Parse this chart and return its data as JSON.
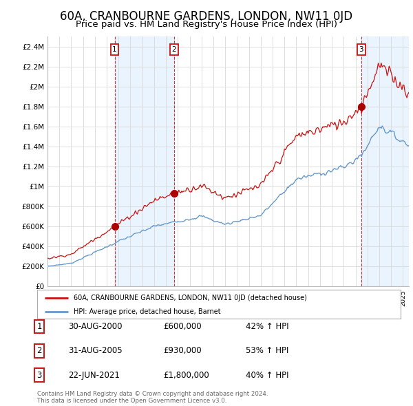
{
  "title": "60A, CRANBOURNE GARDENS, LONDON, NW11 0JD",
  "subtitle": "Price paid vs. HM Land Registry's House Price Index (HPI)",
  "title_fontsize": 12,
  "subtitle_fontsize": 9.5,
  "grid_color": "#d8d8d8",
  "red_line_color": "#cc1111",
  "blue_line_color": "#6699cc",
  "shade_color": "#ddeeff",
  "legend_label_red": "60A, CRANBOURNE GARDENS, LONDON, NW11 0JD (detached house)",
  "legend_label_blue": "HPI: Average price, detached house, Barnet",
  "sales": [
    {
      "date_num": 5.667,
      "price": 600000,
      "label": "1"
    },
    {
      "date_num": 10.667,
      "price": 930000,
      "label": "2"
    },
    {
      "date_num": 26.472,
      "price": 1800000,
      "label": "3"
    }
  ],
  "sale_annotations": [
    {
      "num": "1",
      "date": "30-AUG-2000",
      "price": "£600,000",
      "hpi": "42% ↑ HPI"
    },
    {
      "num": "2",
      "date": "31-AUG-2005",
      "price": "£930,000",
      "hpi": "53% ↑ HPI"
    },
    {
      "num": "3",
      "date": "22-JUN-2021",
      "price": "£1,800,000",
      "hpi": "40% ↑ HPI"
    }
  ],
  "footer": "Contains HM Land Registry data © Crown copyright and database right 2024.\nThis data is licensed under the Open Government Licence v3.0.",
  "ylim": [
    0,
    2500000
  ],
  "yticks": [
    0,
    200000,
    400000,
    600000,
    800000,
    1000000,
    1200000,
    1400000,
    1600000,
    1800000,
    2000000,
    2200000,
    2400000
  ],
  "ytick_labels": [
    "£0",
    "£200K",
    "£400K",
    "£600K",
    "£800K",
    "£1M",
    "£1.2M",
    "£1.4M",
    "£1.6M",
    "£1.8M",
    "£2M",
    "£2.2M",
    "£2.4M"
  ],
  "xlim_start": 1995,
  "xlim_end": 2025.5
}
